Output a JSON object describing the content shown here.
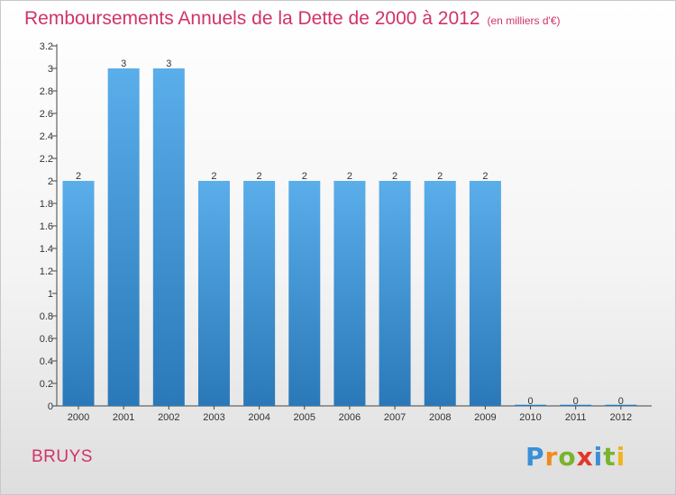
{
  "header": {
    "title": "Remboursements Annuels de la Dette de 2000 à 2012",
    "subtitle": "(en milliers d'€)"
  },
  "footer": {
    "town": "BRUYS",
    "logo": "Proxiti"
  },
  "colors": {
    "accent": "#d0336a",
    "bar_top": "#5aaeea",
    "bar_bottom": "#2a78b8"
  },
  "chart_data": {
    "type": "bar",
    "categories": [
      "2000",
      "2001",
      "2002",
      "2003",
      "2004",
      "2005",
      "2006",
      "2007",
      "2008",
      "2009",
      "2010",
      "2011",
      "2012"
    ],
    "values": [
      2,
      3,
      3,
      2,
      2,
      2,
      2,
      2,
      2,
      2,
      0,
      0,
      0
    ],
    "data_labels": [
      "2",
      "3",
      "3",
      "2",
      "2",
      "2",
      "2",
      "2",
      "2",
      "2",
      "0",
      "0",
      "0"
    ],
    "ylim": [
      0,
      3.2
    ],
    "y_ticks": [
      {
        "value": 0,
        "label": "0"
      },
      {
        "value": 0.2,
        "label": "0.2"
      },
      {
        "value": 0.4,
        "label": "0.4"
      },
      {
        "value": 0.6,
        "label": "0.6"
      },
      {
        "value": 0.8,
        "label": "0.8"
      },
      {
        "value": 1.0,
        "label": "1"
      },
      {
        "value": 1.2,
        "label": "1.2"
      },
      {
        "value": 1.4,
        "label": "1.4"
      },
      {
        "value": 1.6,
        "label": "1.6"
      },
      {
        "value": 1.8,
        "label": "1.8"
      },
      {
        "value": 2.0,
        "label": "2"
      },
      {
        "value": 2.2,
        "label": "2.2"
      },
      {
        "value": 2.4,
        "label": "2.4"
      },
      {
        "value": 2.6,
        "label": "2.6"
      },
      {
        "value": 2.8,
        "label": "2.8"
      },
      {
        "value": 3.0,
        "label": "3"
      },
      {
        "value": 3.2,
        "label": "3.2"
      }
    ],
    "grid": false,
    "legend": "none"
  }
}
